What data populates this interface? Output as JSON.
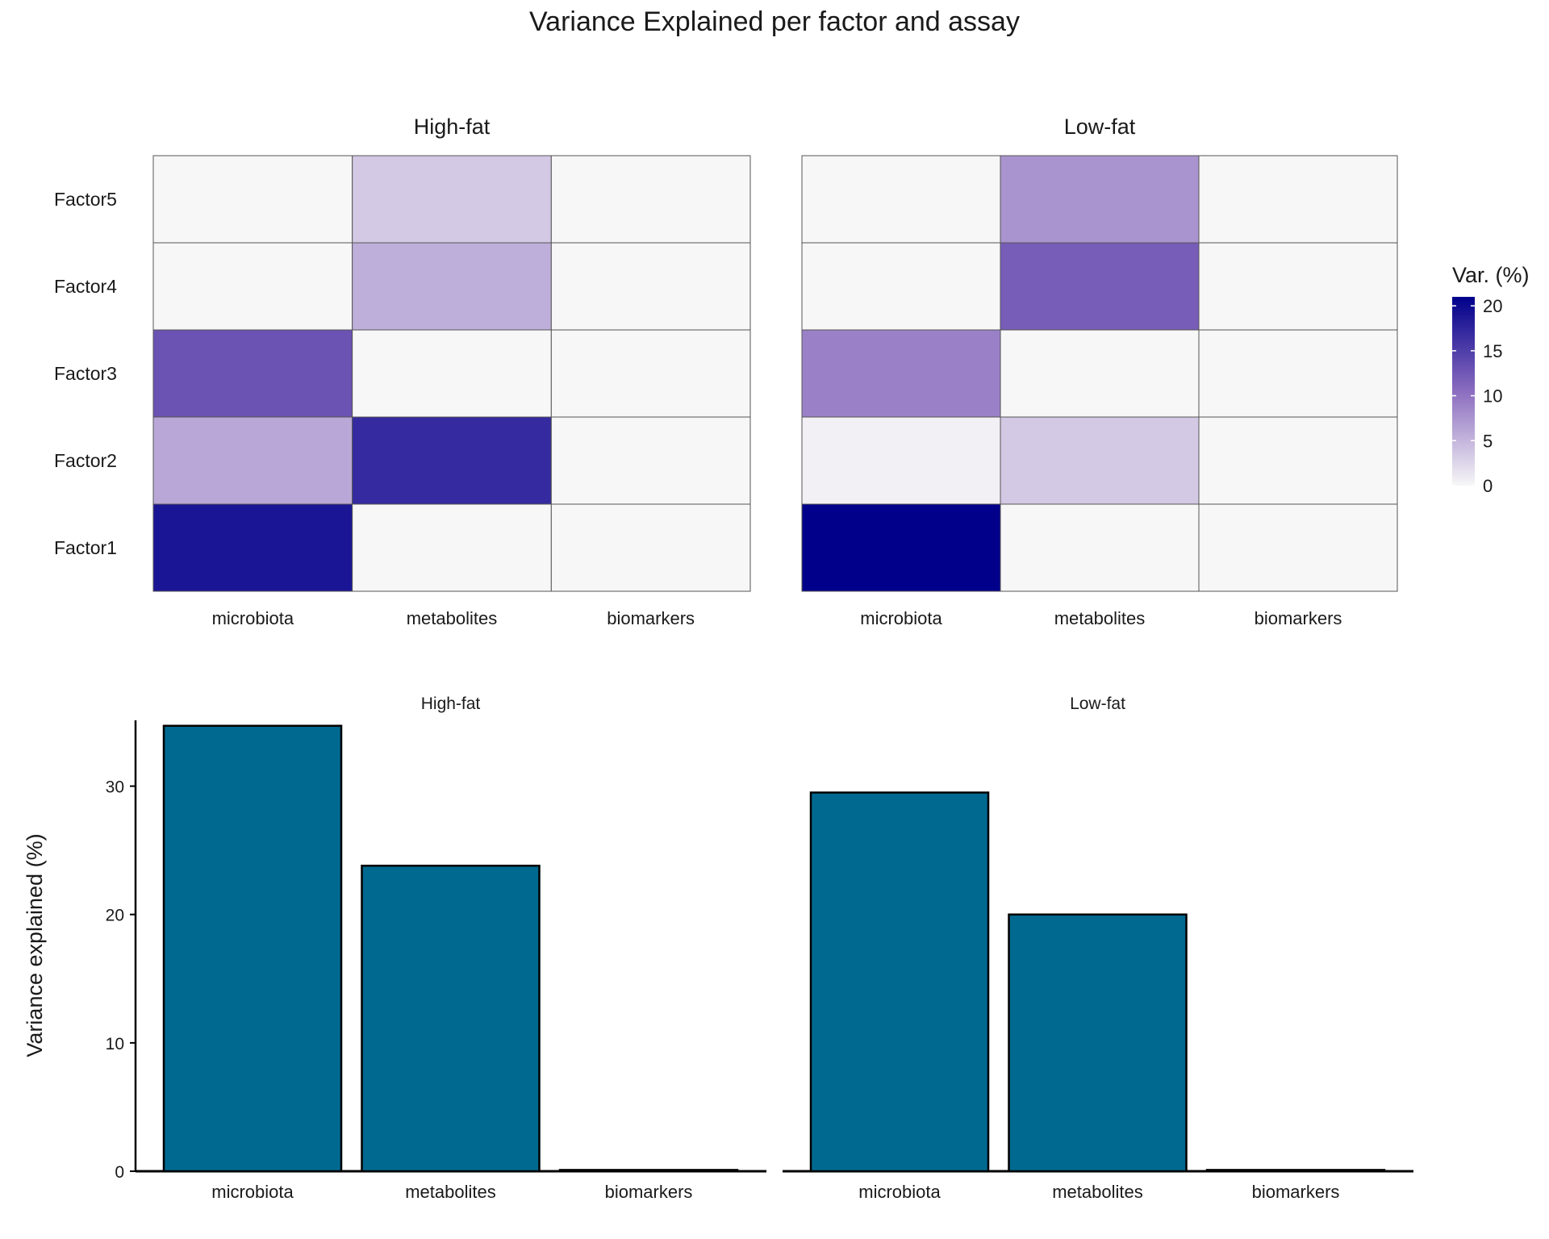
{
  "title": "Variance Explained per factor and assay",
  "colors": {
    "heat_low": "#f7f7f7",
    "heat_mid": "#8b6dbf",
    "heat_high": "#00008b",
    "bar_fill": "#00698f",
    "bar_stroke": "#000000",
    "grid_line": "#555555"
  },
  "chart_data": [
    {
      "type": "heatmap",
      "panels": [
        "High-fat",
        "Low-fat"
      ],
      "x_categories": [
        "microbiota",
        "metabolites",
        "biomarkers"
      ],
      "y_categories": [
        "Factor1",
        "Factor2",
        "Factor3",
        "Factor4",
        "Factor5"
      ],
      "values": {
        "High-fat": [
          [
            19,
            0,
            0
          ],
          [
            6,
            17,
            0
          ],
          [
            13,
            0,
            0
          ],
          [
            0,
            5.5,
            0
          ],
          [
            0,
            3.5,
            0
          ]
        ],
        "Low-fat": [
          [
            21,
            0,
            0
          ],
          [
            0.5,
            3.5,
            0
          ],
          [
            9,
            0,
            0
          ],
          [
            0,
            12,
            0
          ],
          [
            0,
            7.5,
            0
          ]
        ]
      },
      "legend": {
        "title": "Var. (%)",
        "ticks": [
          0,
          5,
          10,
          15,
          20
        ],
        "range": [
          0,
          21
        ],
        "position": "right"
      }
    },
    {
      "type": "bar",
      "panels": [
        "High-fat",
        "Low-fat"
      ],
      "categories": [
        "microbiota",
        "metabolites",
        "biomarkers"
      ],
      "series": [
        {
          "panel": "High-fat",
          "values": [
            34.7,
            23.8,
            0.1
          ]
        },
        {
          "panel": "Low-fat",
          "values": [
            29.5,
            20.0,
            0.1
          ]
        }
      ],
      "ylabel": "Variance explained (%)",
      "ylim": [
        0,
        35
      ],
      "yticks": [
        0,
        10,
        20,
        30
      ],
      "grid": false
    }
  ]
}
